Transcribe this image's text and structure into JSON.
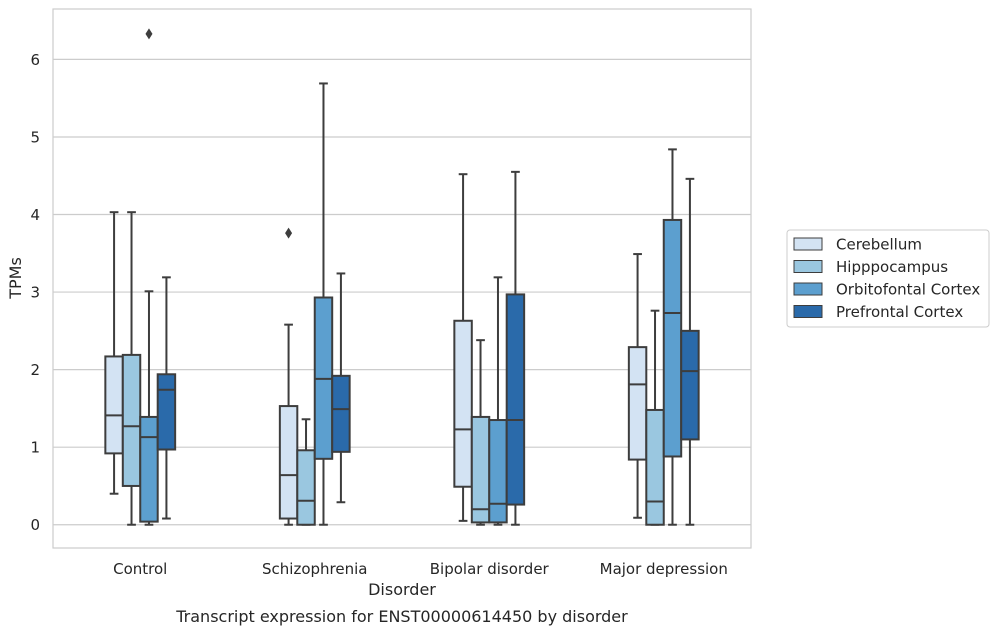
{
  "chart_data": {
    "type": "boxplot",
    "caption": "Transcript expression for ENST00000614450 by disorder",
    "xlabel": "Disorder",
    "ylabel": "TPMs",
    "ylim": [
      -0.3,
      6.65
    ],
    "yticks": [
      0,
      1,
      2,
      3,
      4,
      5,
      6
    ],
    "grid": "horizontal",
    "legend_position": "right",
    "categories": [
      "Control",
      "Schizophrenia",
      "Bipolar disorder",
      "Major depression"
    ],
    "series": [
      {
        "name": "Cerebellum",
        "color": "#d3e3f3",
        "boxes": [
          {
            "whisker_low": 0.4,
            "q1": 0.92,
            "median": 1.41,
            "q3": 2.17,
            "whisker_high": 4.03,
            "outliers": []
          },
          {
            "whisker_low": 0.0,
            "q1": 0.08,
            "median": 0.64,
            "q3": 1.53,
            "whisker_high": 2.58,
            "outliers": [
              3.76
            ]
          },
          {
            "whisker_low": 0.05,
            "q1": 0.49,
            "median": 1.23,
            "q3": 2.63,
            "whisker_high": 4.52,
            "outliers": []
          },
          {
            "whisker_low": 0.09,
            "q1": 0.84,
            "median": 1.81,
            "q3": 2.29,
            "whisker_high": 3.49,
            "outliers": []
          }
        ]
      },
      {
        "name": "Hipppocampus",
        "color": "#9ac7e0",
        "boxes": [
          {
            "whisker_low": 0.0,
            "q1": 0.5,
            "median": 1.27,
            "q3": 2.19,
            "whisker_high": 4.03,
            "outliers": []
          },
          {
            "whisker_low": 0.0,
            "q1": 0.0,
            "median": 0.31,
            "q3": 0.96,
            "whisker_high": 1.36,
            "outliers": []
          },
          {
            "whisker_low": 0.0,
            "q1": 0.03,
            "median": 0.2,
            "q3": 1.39,
            "whisker_high": 2.38,
            "outliers": []
          },
          {
            "whisker_low": 0.0,
            "q1": 0.0,
            "median": 0.3,
            "q3": 1.48,
            "whisker_high": 2.76,
            "outliers": []
          }
        ]
      },
      {
        "name": "Orbitofontal Cortex",
        "color": "#5c9fcf",
        "boxes": [
          {
            "whisker_low": 0.0,
            "q1": 0.04,
            "median": 1.13,
            "q3": 1.39,
            "whisker_high": 3.01,
            "outliers": [
              6.33
            ]
          },
          {
            "whisker_low": 0.0,
            "q1": 0.85,
            "median": 1.88,
            "q3": 2.93,
            "whisker_high": 5.69,
            "outliers": []
          },
          {
            "whisker_low": 0.0,
            "q1": 0.03,
            "median": 0.27,
            "q3": 1.35,
            "whisker_high": 3.19,
            "outliers": []
          },
          {
            "whisker_low": 0.0,
            "q1": 0.88,
            "median": 2.73,
            "q3": 3.93,
            "whisker_high": 4.84,
            "outliers": []
          }
        ]
      },
      {
        "name": "Prefrontal Cortex",
        "color": "#2a6aaa",
        "boxes": [
          {
            "whisker_low": 0.08,
            "q1": 0.97,
            "median": 1.74,
            "q3": 1.94,
            "whisker_high": 3.19,
            "outliers": []
          },
          {
            "whisker_low": 0.29,
            "q1": 0.94,
            "median": 1.49,
            "q3": 1.92,
            "whisker_high": 3.24,
            "outliers": []
          },
          {
            "whisker_low": 0.0,
            "q1": 0.26,
            "median": 1.35,
            "q3": 2.97,
            "whisker_high": 4.55,
            "outliers": []
          },
          {
            "whisker_low": 0.0,
            "q1": 1.1,
            "median": 1.98,
            "q3": 2.5,
            "whisker_high": 4.46,
            "outliers": []
          }
        ]
      }
    ]
  }
}
